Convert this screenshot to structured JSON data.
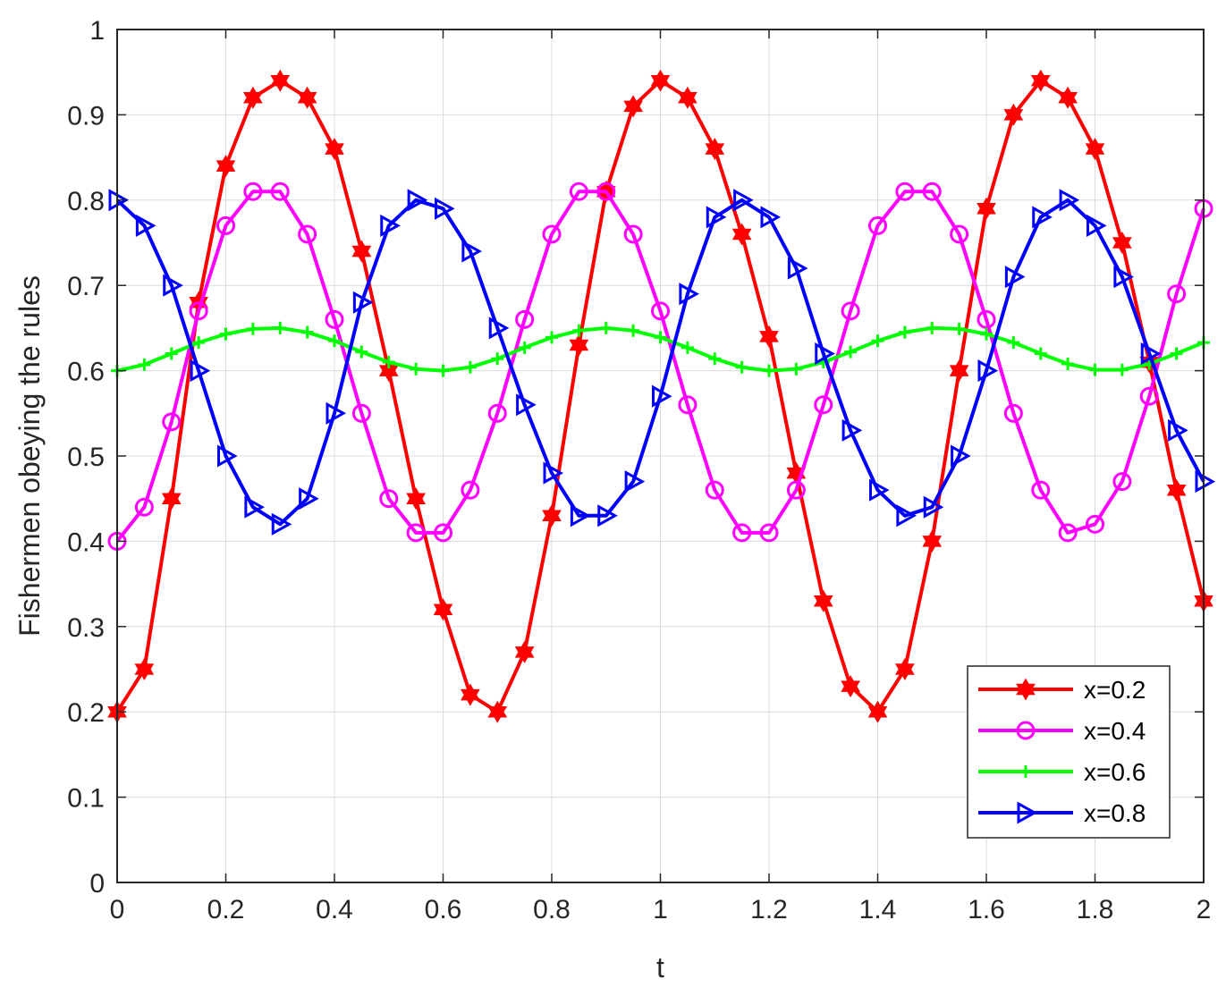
{
  "chart_data": {
    "type": "line",
    "title": "",
    "xlabel": "t",
    "ylabel": "Fishermen obeying the rules",
    "xlim": [
      0,
      2
    ],
    "ylim": [
      0,
      1
    ],
    "xticks": [
      0,
      0.2,
      0.4,
      0.6,
      0.8,
      1,
      1.2,
      1.4,
      1.6,
      1.8,
      2
    ],
    "xtick_labels": [
      "0",
      "0.2",
      "0.4",
      "0.6",
      "0.8",
      "1",
      "1.2",
      "1.4",
      "1.6",
      "1.8",
      "2"
    ],
    "yticks": [
      0,
      0.1,
      0.2,
      0.3,
      0.4,
      0.5,
      0.6,
      0.7,
      0.8,
      0.9,
      1
    ],
    "ytick_labels": [
      "0",
      "0.1",
      "0.2",
      "0.3",
      "0.4",
      "0.5",
      "0.6",
      "0.7",
      "0.8",
      "0.9",
      "1"
    ],
    "grid": true,
    "legend_position": "bottom-right",
    "series": [
      {
        "name": "x=0.2",
        "color": "#ff0000",
        "marker": "hexagram",
        "x": [
          0,
          0.05,
          0.1,
          0.15,
          0.2,
          0.25,
          0.3,
          0.35,
          0.4,
          0.45,
          0.5,
          0.55,
          0.6,
          0.65,
          0.7,
          0.75,
          0.8,
          0.85,
          0.9,
          0.95,
          1.0,
          1.05,
          1.1,
          1.15,
          1.2,
          1.25,
          1.3,
          1.35,
          1.4,
          1.45,
          1.5,
          1.55,
          1.6,
          1.65,
          1.7,
          1.75,
          1.8,
          1.85,
          1.9,
          1.95,
          2.0
        ],
        "y": [
          0.2,
          0.25,
          0.45,
          0.68,
          0.84,
          0.92,
          0.94,
          0.92,
          0.86,
          0.74,
          0.6,
          0.45,
          0.32,
          0.22,
          0.2,
          0.27,
          0.43,
          0.63,
          0.81,
          0.91,
          0.94,
          0.92,
          0.86,
          0.76,
          0.64,
          0.48,
          0.33,
          0.23,
          0.2,
          0.25,
          0.4,
          0.6,
          0.79,
          0.9,
          0.94,
          0.92,
          0.86,
          0.75,
          0.61,
          0.46,
          0.33
        ]
      },
      {
        "name": "x=0.4",
        "color": "#ff00ff",
        "marker": "circle",
        "x": [
          0,
          0.05,
          0.1,
          0.15,
          0.2,
          0.25,
          0.3,
          0.35,
          0.4,
          0.45,
          0.5,
          0.55,
          0.6,
          0.65,
          0.7,
          0.75,
          0.8,
          0.85,
          0.9,
          0.95,
          1.0,
          1.05,
          1.1,
          1.15,
          1.2,
          1.25,
          1.3,
          1.35,
          1.4,
          1.45,
          1.5,
          1.55,
          1.6,
          1.65,
          1.7,
          1.75,
          1.8,
          1.85,
          1.9,
          1.95,
          2.0
        ],
        "y": [
          0.4,
          0.44,
          0.54,
          0.67,
          0.77,
          0.81,
          0.81,
          0.76,
          0.66,
          0.55,
          0.45,
          0.41,
          0.41,
          0.46,
          0.55,
          0.66,
          0.76,
          0.81,
          0.81,
          0.76,
          0.67,
          0.56,
          0.46,
          0.41,
          0.41,
          0.46,
          0.56,
          0.67,
          0.77,
          0.81,
          0.81,
          0.76,
          0.66,
          0.55,
          0.46,
          0.41,
          0.42,
          0.47,
          0.57,
          0.69,
          0.79
        ]
      },
      {
        "name": "x=0.6",
        "color": "#00ff00",
        "marker": "plus",
        "x": [
          0,
          0.05,
          0.1,
          0.15,
          0.2,
          0.25,
          0.3,
          0.35,
          0.4,
          0.45,
          0.5,
          0.55,
          0.6,
          0.65,
          0.7,
          0.75,
          0.8,
          0.85,
          0.9,
          0.95,
          1.0,
          1.05,
          1.1,
          1.15,
          1.2,
          1.25,
          1.3,
          1.35,
          1.4,
          1.45,
          1.5,
          1.55,
          1.6,
          1.65,
          1.7,
          1.75,
          1.8,
          1.85,
          1.9,
          1.95,
          2.0
        ],
        "y": [
          0.6,
          0.607,
          0.62,
          0.633,
          0.643,
          0.649,
          0.65,
          0.645,
          0.635,
          0.622,
          0.61,
          0.602,
          0.6,
          0.604,
          0.614,
          0.627,
          0.639,
          0.647,
          0.65,
          0.647,
          0.639,
          0.627,
          0.614,
          0.604,
          0.6,
          0.602,
          0.61,
          0.622,
          0.635,
          0.645,
          0.65,
          0.649,
          0.643,
          0.633,
          0.62,
          0.608,
          0.601,
          0.601,
          0.608,
          0.62,
          0.633
        ]
      },
      {
        "name": "x=0.8",
        "color": "#0000ff",
        "marker": "triangle-right",
        "x": [
          0,
          0.05,
          0.1,
          0.15,
          0.2,
          0.25,
          0.3,
          0.35,
          0.4,
          0.45,
          0.5,
          0.55,
          0.6,
          0.65,
          0.7,
          0.75,
          0.8,
          0.85,
          0.9,
          0.95,
          1.0,
          1.05,
          1.1,
          1.15,
          1.2,
          1.25,
          1.3,
          1.35,
          1.4,
          1.45,
          1.5,
          1.55,
          1.6,
          1.65,
          1.7,
          1.75,
          1.8,
          1.85,
          1.9,
          1.95,
          2.0
        ],
        "y": [
          0.8,
          0.77,
          0.7,
          0.6,
          0.5,
          0.44,
          0.42,
          0.45,
          0.55,
          0.68,
          0.77,
          0.8,
          0.79,
          0.74,
          0.65,
          0.56,
          0.48,
          0.43,
          0.43,
          0.47,
          0.57,
          0.69,
          0.78,
          0.8,
          0.78,
          0.72,
          0.62,
          0.53,
          0.46,
          0.43,
          0.44,
          0.5,
          0.6,
          0.71,
          0.78,
          0.8,
          0.77,
          0.71,
          0.62,
          0.53,
          0.47
        ]
      }
    ]
  }
}
